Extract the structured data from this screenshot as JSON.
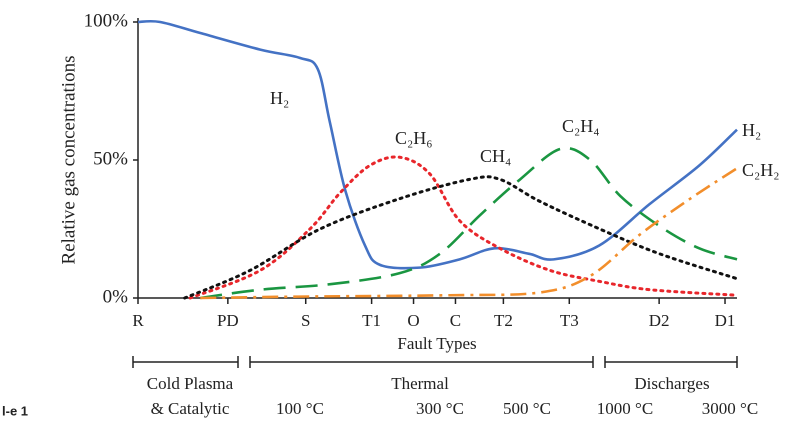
{
  "chart_data": {
    "type": "line",
    "ylabel": "Relative gas concentrations",
    "xlabel": "Fault Types",
    "xlim": [
      0,
      100
    ],
    "ylim": [
      0,
      100
    ],
    "xticks": [
      {
        "value": 0,
        "label": "R"
      },
      {
        "value": 15,
        "label": "PD"
      },
      {
        "value": 28,
        "label": "S"
      },
      {
        "value": 39,
        "label": "T1"
      },
      {
        "value": 46,
        "label": "O"
      },
      {
        "value": 53,
        "label": "C"
      },
      {
        "value": 61,
        "label": "T2"
      },
      {
        "value": 72,
        "label": "T3"
      },
      {
        "value": 87,
        "label": "D2"
      },
      {
        "value": 98,
        "label": "D1"
      }
    ],
    "yticks": [
      {
        "value": 0,
        "label": "0%"
      },
      {
        "value": 50,
        "label": "50%"
      },
      {
        "value": 100,
        "label": "100%"
      }
    ],
    "series": [
      {
        "name": "H₂",
        "color": "#4472c4",
        "style": "solid",
        "x": [
          0,
          3.7,
          10.4,
          20.4,
          27,
          30,
          32,
          34.6,
          37.9,
          40.4,
          47,
          53.7,
          59.5,
          65.3,
          69.4,
          77,
          85.4,
          93.7,
          100
        ],
        "values": [
          100,
          100,
          96,
          90,
          87,
          83,
          64,
          39,
          19,
          12,
          11,
          14,
          18,
          16,
          14,
          19,
          34,
          48,
          61
        ]
      },
      {
        "name": "C₂H₆",
        "color": "#e8262b",
        "style": "dotted",
        "x": [
          8.7,
          20.4,
          28.7,
          33.7,
          38.7,
          43.7,
          48.7,
          53.7,
          60.4,
          68.8,
          77.1,
          85.5,
          100
        ],
        "values": [
          0,
          10,
          25,
          38,
          48,
          51,
          45,
          28,
          18,
          10,
          6,
          3,
          1
        ]
      },
      {
        "name": "CH₄",
        "color": "#111111",
        "style": "dotted",
        "x": [
          7.8,
          18.7,
          30.4,
          43.7,
          55.4,
          60.4,
          67.1,
          77.1,
          87.1,
          100
        ],
        "values": [
          0,
          10,
          25,
          36,
          43,
          43,
          35,
          25,
          16,
          7
        ]
      },
      {
        "name": "C₂H₄",
        "color": "#1a9641",
        "style": "dashed",
        "x": [
          10.4,
          20.4,
          32.1,
          43.7,
          50.4,
          57.1,
          63.8,
          70.5,
          75.5,
          80.5,
          87.1,
          93.7,
          100
        ],
        "values": [
          0,
          3,
          5,
          9,
          16,
          30,
          43,
          54,
          50,
          37,
          26,
          18,
          14
        ]
      },
      {
        "name": "C₂H₂",
        "color": "#f28e2b",
        "style": "dashdot",
        "x": [
          10.4,
          26.7,
          52,
          67.1,
          75.5,
          83.8,
          92.2,
          100
        ],
        "values": [
          0,
          0.5,
          1,
          2,
          8,
          23,
          36,
          47
        ]
      }
    ],
    "groups": [
      [
        "Cold Plasma",
        "& Catalytic"
      ],
      [
        "Thermal"
      ],
      [
        "Discharges"
      ]
    ],
    "temperatures": [
      "100 °C",
      "300 °C",
      "500 °C",
      "1000 °C",
      "3000 °C"
    ],
    "caption_fragment": "l-e 1"
  }
}
